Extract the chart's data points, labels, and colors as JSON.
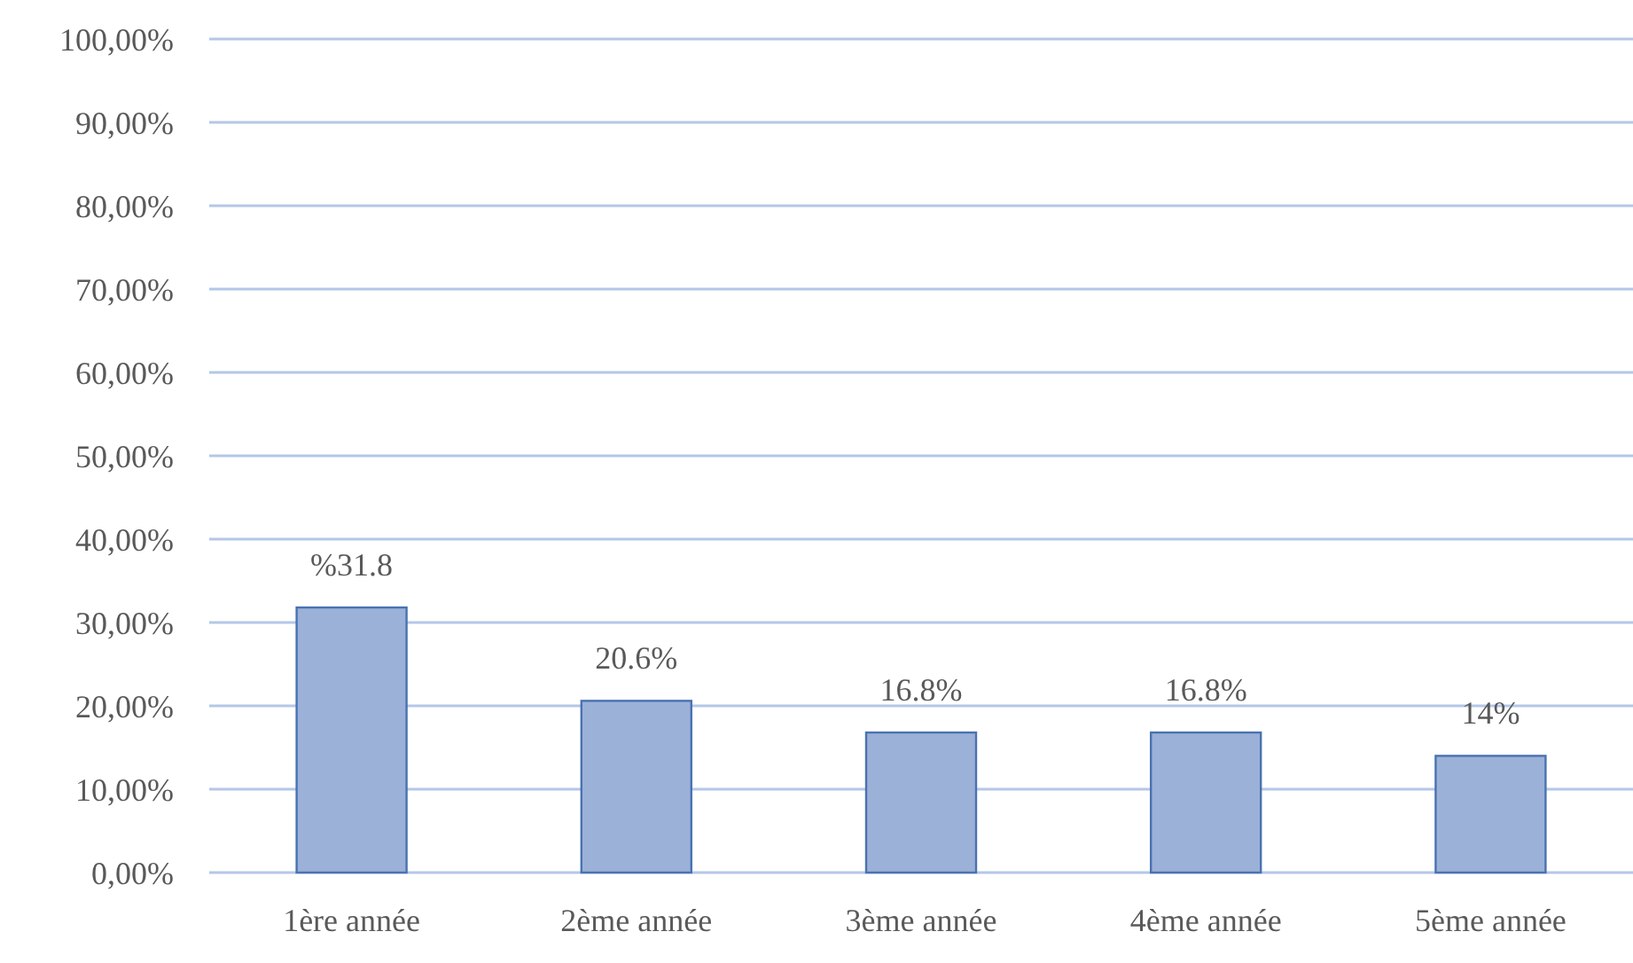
{
  "chart_data": {
    "type": "bar",
    "categories": [
      "1ère année",
      "2ème année",
      "3ème année",
      "4ème année",
      "5ème année"
    ],
    "values": [
      31.8,
      20.6,
      16.8,
      16.8,
      14
    ],
    "value_labels": [
      "%31.8",
      "20.6%",
      "16.8%",
      "16.8%",
      "14%"
    ],
    "color": "#9bb1d8",
    "ylim": [
      0,
      100
    ],
    "yticks": [
      {
        "value": 0,
        "label": "0,00%"
      },
      {
        "value": 10,
        "label": "10,00%"
      },
      {
        "value": 20,
        "label": "20,00%"
      },
      {
        "value": 30,
        "label": "30,00%"
      },
      {
        "value": 40,
        "label": "40,00%"
      },
      {
        "value": 50,
        "label": "50,00%"
      },
      {
        "value": 60,
        "label": "60,00%"
      },
      {
        "value": 70,
        "label": "70,00%"
      },
      {
        "value": 80,
        "label": "80,00%"
      },
      {
        "value": 90,
        "label": "90,00%"
      },
      {
        "value": 100,
        "label": "100,00%"
      }
    ],
    "grid": "y"
  }
}
